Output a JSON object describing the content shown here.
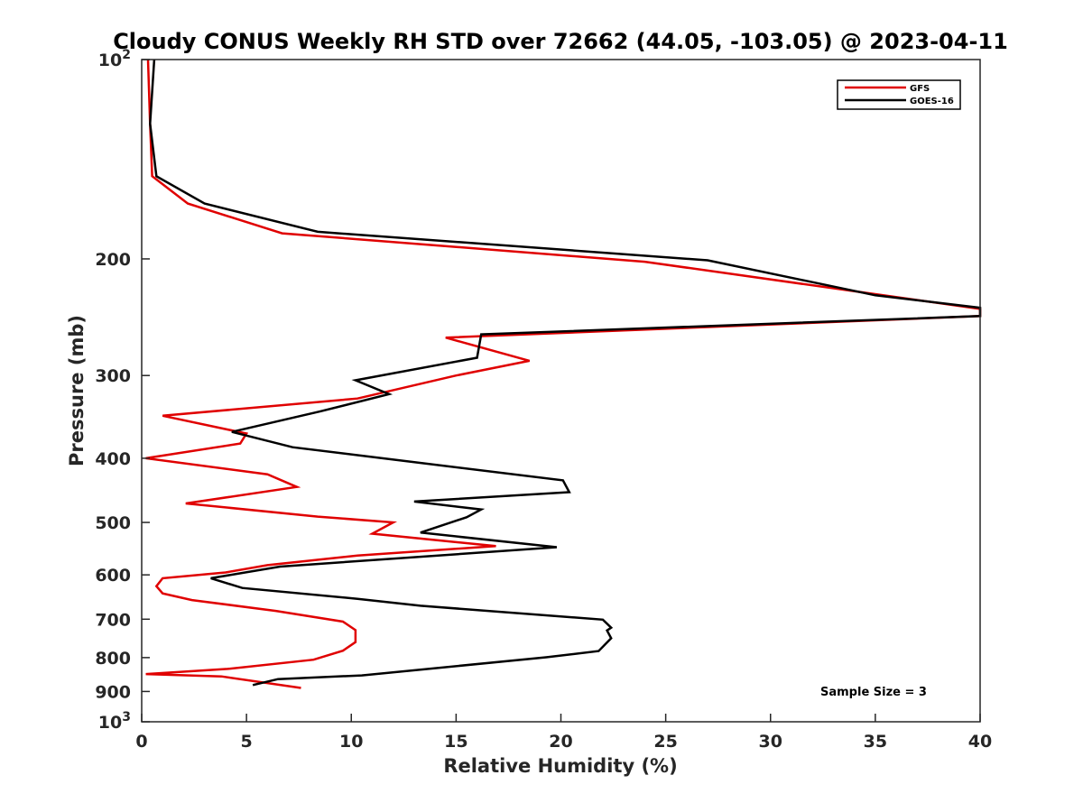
{
  "chart_data": {
    "type": "line",
    "title": "Cloudy CONUS Weekly RH STD over 72662 (44.05, -103.05) @ 2023-04-11",
    "xlabel": "Relative Humidity (%)",
    "ylabel": "Pressure (mb)",
    "xlim": [
      0,
      40
    ],
    "ylim": [
      100,
      1000
    ],
    "y_scale": "log",
    "y_reversed": true,
    "x_ticks": [
      "0",
      "5",
      "10",
      "15",
      "20",
      "25",
      "30",
      "35",
      "40"
    ],
    "y_ticks": [
      {
        "value": 100,
        "base": "10",
        "exp": "2"
      },
      {
        "value": 200,
        "label": "200"
      },
      {
        "value": 300,
        "label": "300"
      },
      {
        "value": 400,
        "label": "400"
      },
      {
        "value": 500,
        "label": "500"
      },
      {
        "value": 600,
        "label": "600"
      },
      {
        "value": 700,
        "label": "700"
      },
      {
        "value": 800,
        "label": "800"
      },
      {
        "value": 900,
        "label": "900"
      },
      {
        "value": 1000,
        "base": "10",
        "exp": "3"
      }
    ],
    "grid": false,
    "legend_position": "top-right",
    "series": [
      {
        "name": "GFS",
        "color": "#e00000",
        "points": [
          [
            0.3,
            100
          ],
          [
            0.4,
            125
          ],
          [
            0.5,
            150
          ],
          [
            2.2,
            165
          ],
          [
            6.7,
            183
          ],
          [
            24.0,
            202
          ],
          [
            40.0,
            238
          ],
          [
            40.0,
            244
          ],
          [
            14.5,
            263
          ],
          [
            18.5,
            285
          ],
          [
            15.0,
            300
          ],
          [
            10.3,
            325
          ],
          [
            1.0,
            345
          ],
          [
            5.0,
            367
          ],
          [
            4.7,
            380
          ],
          [
            0.2,
            400
          ],
          [
            6.0,
            423
          ],
          [
            7.4,
            442
          ],
          [
            2.1,
            468
          ],
          [
            8.4,
            490
          ],
          [
            12.0,
            500
          ],
          [
            11.0,
            520
          ],
          [
            16.9,
            543
          ],
          [
            10.3,
            561
          ],
          [
            6.0,
            580
          ],
          [
            4.0,
            595
          ],
          [
            1.0,
            607
          ],
          [
            0.7,
            624
          ],
          [
            1.0,
            640
          ],
          [
            2.4,
            655
          ],
          [
            6.4,
            680
          ],
          [
            9.6,
            706
          ],
          [
            10.2,
            727
          ],
          [
            10.2,
            758
          ],
          [
            9.6,
            781
          ],
          [
            8.2,
            806
          ],
          [
            4.1,
            832
          ],
          [
            0.2,
            847
          ],
          [
            3.8,
            854
          ],
          [
            7.6,
            889
          ]
        ]
      },
      {
        "name": "GOES-16",
        "color": "#000000",
        "points": [
          [
            0.6,
            100
          ],
          [
            0.4,
            125
          ],
          [
            0.7,
            150
          ],
          [
            3.0,
            165
          ],
          [
            8.4,
            182
          ],
          [
            27.0,
            201
          ],
          [
            35.0,
            227
          ],
          [
            40.0,
            237
          ],
          [
            40.0,
            244
          ],
          [
            16.2,
            260
          ],
          [
            16.0,
            282
          ],
          [
            10.2,
            305
          ],
          [
            11.8,
            320
          ],
          [
            8.5,
            340
          ],
          [
            4.3,
            365
          ],
          [
            7.2,
            385
          ],
          [
            20.1,
            432
          ],
          [
            20.4,
            450
          ],
          [
            13.0,
            465
          ],
          [
            16.2,
            478
          ],
          [
            15.5,
            491
          ],
          [
            13.3,
            518
          ],
          [
            19.8,
            545
          ],
          [
            6.6,
            583
          ],
          [
            3.3,
            607
          ],
          [
            4.8,
            628
          ],
          [
            10.3,
            652
          ],
          [
            13.3,
            668
          ],
          [
            22.0,
            701
          ],
          [
            22.4,
            721
          ],
          [
            22.2,
            728
          ],
          [
            22.4,
            748
          ],
          [
            21.8,
            782
          ],
          [
            19.3,
            799
          ],
          [
            10.5,
            851
          ],
          [
            6.5,
            862
          ],
          [
            5.3,
            880
          ]
        ]
      }
    ],
    "annotations": [
      {
        "text": "Sample Size = 3"
      }
    ]
  }
}
